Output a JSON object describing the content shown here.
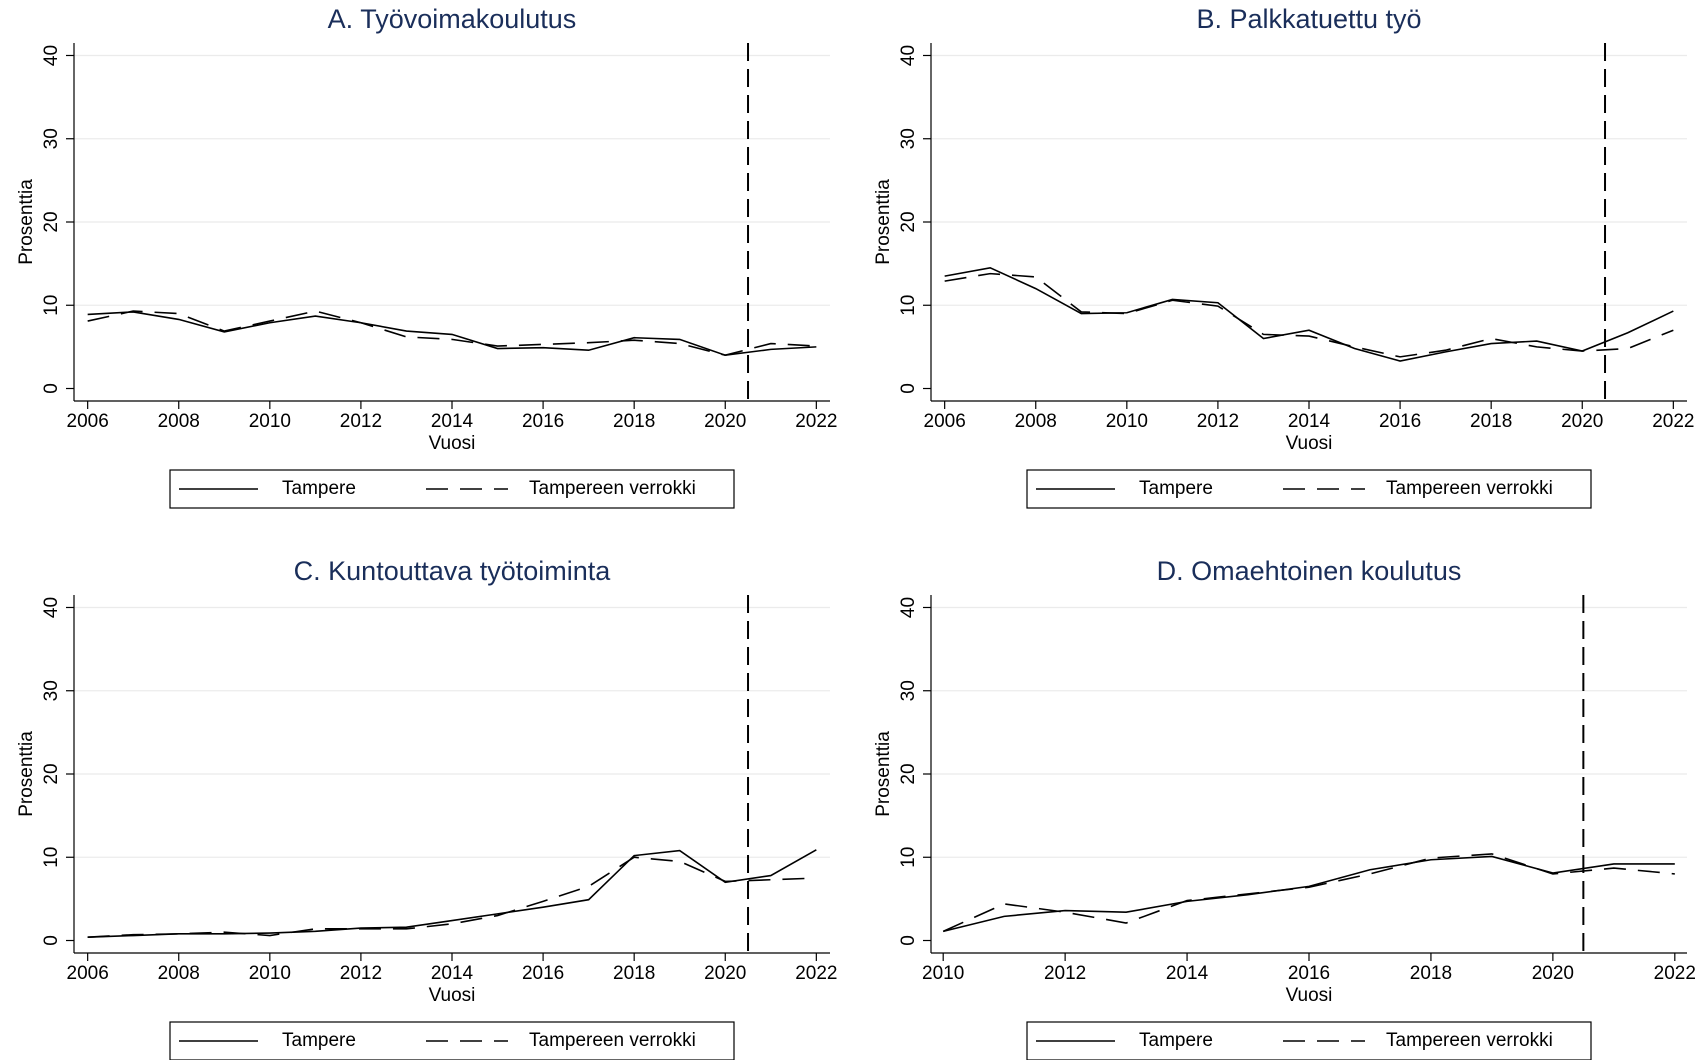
{
  "chart_data": [
    {
      "type": "line",
      "title": "A. Työvoimakoulutus",
      "xlabel": "Vuosi",
      "ylabel": "Prosenttia",
      "x": [
        2006,
        2007,
        2008,
        2009,
        2010,
        2011,
        2012,
        2013,
        2014,
        2015,
        2016,
        2017,
        2018,
        2019,
        2020,
        2021,
        2022
      ],
      "series": [
        {
          "name": "Tampere",
          "color": "#000000",
          "linestyle": "solid",
          "values": [
            8.9,
            9.2,
            8.3,
            6.8,
            7.9,
            8.7,
            7.9,
            6.9,
            6.5,
            4.8,
            4.9,
            4.6,
            6.1,
            5.9,
            4.0,
            4.7,
            5.0
          ]
        },
        {
          "name": "Tampereen verrokki",
          "color": "#000000",
          "linestyle": "dashed",
          "values": [
            8.1,
            9.3,
            9.0,
            6.9,
            8.1,
            9.3,
            7.9,
            6.2,
            5.9,
            5.1,
            5.3,
            5.5,
            5.8,
            5.4,
            4.0,
            5.4,
            5.1
          ]
        }
      ],
      "xlim": [
        2005.7,
        2022.3
      ],
      "xticks": [
        2006,
        2008,
        2010,
        2012,
        2014,
        2016,
        2018,
        2020,
        2022
      ],
      "ylim": [
        -1.5,
        41.5
      ],
      "yticks": [
        0,
        10,
        20,
        30,
        40
      ],
      "grid": true,
      "vline": 2020.5,
      "legend": "bottom"
    },
    {
      "type": "line",
      "title": "B. Palkkatuettu työ",
      "xlabel": "Vuosi",
      "ylabel": "Prosenttia",
      "x": [
        2006,
        2007,
        2008,
        2009,
        2010,
        2011,
        2012,
        2013,
        2014,
        2015,
        2016,
        2017,
        2018,
        2019,
        2020,
        2021,
        2022
      ],
      "series": [
        {
          "name": "Tampere",
          "color": "#000000",
          "linestyle": "solid",
          "values": [
            13.5,
            14.5,
            12.0,
            9.0,
            9.1,
            10.7,
            10.3,
            6.0,
            7.0,
            4.8,
            3.3,
            4.4,
            5.4,
            5.7,
            4.5,
            6.7,
            9.3
          ]
        },
        {
          "name": "Tampereen verrokki",
          "color": "#000000",
          "linestyle": "dashed",
          "values": [
            12.9,
            13.8,
            13.4,
            9.2,
            9.0,
            10.6,
            9.9,
            6.5,
            6.3,
            5.0,
            3.8,
            4.6,
            6.0,
            5.0,
            4.5,
            4.8,
            7.0
          ]
        }
      ],
      "xlim": [
        2005.7,
        2022.3
      ],
      "xticks": [
        2006,
        2008,
        2010,
        2012,
        2014,
        2016,
        2018,
        2020,
        2022
      ],
      "ylim": [
        -1.5,
        41.5
      ],
      "yticks": [
        0,
        10,
        20,
        30,
        40
      ],
      "grid": true,
      "vline": 2020.5,
      "legend": "bottom"
    },
    {
      "type": "line",
      "title": "C. Kuntouttava työtoiminta",
      "xlabel": "Vuosi",
      "ylabel": "Prosenttia",
      "x": [
        2006,
        2007,
        2008,
        2009,
        2010,
        2011,
        2012,
        2013,
        2014,
        2015,
        2016,
        2017,
        2018,
        2019,
        2020,
        2021,
        2022
      ],
      "series": [
        {
          "name": "Tampere",
          "color": "#000000",
          "linestyle": "solid",
          "values": [
            0.4,
            0.6,
            0.8,
            0.8,
            0.9,
            1.1,
            1.5,
            1.6,
            2.4,
            3.2,
            4.0,
            4.9,
            10.2,
            10.8,
            7.0,
            7.8,
            10.9
          ]
        },
        {
          "name": "Tampereen verrokki",
          "color": "#000000",
          "linestyle": "dashed",
          "values": [
            0.4,
            0.7,
            0.8,
            1.0,
            0.6,
            1.4,
            1.4,
            1.4,
            2.0,
            3.0,
            4.7,
            6.5,
            10.0,
            9.5,
            7.1,
            7.3,
            7.5
          ]
        }
      ],
      "xlim": [
        2005.7,
        2022.3
      ],
      "xticks": [
        2006,
        2008,
        2010,
        2012,
        2014,
        2016,
        2018,
        2020,
        2022
      ],
      "ylim": [
        -1.5,
        41.5
      ],
      "yticks": [
        0,
        10,
        20,
        30,
        40
      ],
      "grid": true,
      "vline": 2020.5,
      "legend": "bottom"
    },
    {
      "type": "line",
      "title": "D. Omaehtoinen koulutus",
      "xlabel": "Vuosi",
      "ylabel": "Prosenttia",
      "x": [
        2010,
        2011,
        2012,
        2013,
        2014,
        2015,
        2016,
        2017,
        2018,
        2019,
        2020,
        2021,
        2022
      ],
      "series": [
        {
          "name": "Tampere",
          "color": "#000000",
          "linestyle": "solid",
          "values": [
            1.1,
            2.9,
            3.6,
            3.4,
            4.7,
            5.5,
            6.5,
            8.5,
            9.7,
            10.1,
            8.1,
            9.2,
            9.2
          ]
        },
        {
          "name": "Tampereen verrokki",
          "color": "#000000",
          "linestyle": "dashed",
          "values": [
            1.1,
            4.4,
            3.4,
            2.1,
            4.8,
            5.6,
            6.4,
            8.0,
            9.9,
            10.4,
            8.0,
            8.7,
            8.0
          ]
        }
      ],
      "xlim": [
        2009.8,
        2022.2
      ],
      "xticks": [
        2010,
        2012,
        2014,
        2016,
        2018,
        2020,
        2022
      ],
      "ylim": [
        -1.5,
        41.5
      ],
      "yticks": [
        0,
        10,
        20,
        30,
        40
      ],
      "grid": true,
      "vline": 2020.5,
      "legend": "bottom"
    }
  ]
}
